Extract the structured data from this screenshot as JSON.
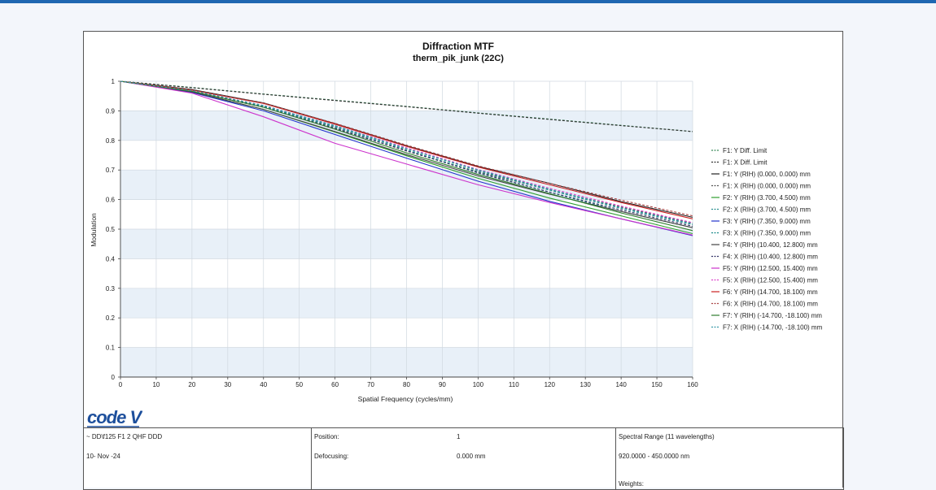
{
  "chart_data": {
    "type": "line",
    "title": "Diffraction MTF",
    "subtitle": "therm_pik_junk (22C)",
    "xlabel": "Spatial Frequency (cycles/mm)",
    "ylabel": "Modulation",
    "xlim": [
      0,
      160
    ],
    "ylim": [
      0,
      1
    ],
    "xticks": [
      "0",
      "10",
      "20",
      "30",
      "40",
      "50",
      "60",
      "70",
      "80",
      "90",
      "100",
      "110",
      "120",
      "130",
      "140",
      "150",
      "160"
    ],
    "yticks": [
      "0",
      "0.1",
      "0.2",
      "0.3",
      "0.4",
      "0.5",
      "0.6",
      "0.7",
      "0.8",
      "0.9",
      "1"
    ],
    "grid": true,
    "legend_position": "right",
    "x": [
      0,
      20,
      40,
      60,
      80,
      100,
      120,
      140,
      160
    ],
    "series": [
      {
        "name": "F1: Y Diff. Limit",
        "color": "#3a8a5a",
        "dash": "dashed",
        "values": [
          1,
          0.979,
          0.957,
          0.936,
          0.915,
          0.893,
          0.872,
          0.851,
          0.83
        ]
      },
      {
        "name": "F1: X Diff. Limit",
        "color": "#333333",
        "dash": "dashed",
        "values": [
          1,
          0.978,
          0.956,
          0.935,
          0.914,
          0.892,
          0.871,
          0.85,
          0.83
        ]
      },
      {
        "name": "F1: Y (RIH) (0.000, 0.000) mm",
        "color": "#222222",
        "dash": "solid",
        "values": [
          1,
          0.972,
          0.927,
          0.857,
          0.782,
          0.712,
          0.655,
          0.593,
          0.54
        ]
      },
      {
        "name": "F1: X (RIH) (0.000, 0.000) mm",
        "color": "#555555",
        "dash": "dashed",
        "values": [
          1,
          0.968,
          0.915,
          0.842,
          0.764,
          0.694,
          0.633,
          0.575,
          0.52
        ]
      },
      {
        "name": "F2: Y (RIH) (3.700, 4.500) mm",
        "color": "#2e9e2e",
        "dash": "solid",
        "values": [
          1,
          0.963,
          0.905,
          0.828,
          0.748,
          0.672,
          0.605,
          0.545,
          0.485
        ]
      },
      {
        "name": "F2: X (RIH) (3.700, 4.500) mm",
        "color": "#2a8f8f",
        "dash": "dashed",
        "values": [
          1,
          0.966,
          0.913,
          0.845,
          0.768,
          0.692,
          0.625,
          0.56,
          0.505
        ]
      },
      {
        "name": "F3: Y (RIH) (7.350, 9.000) mm",
        "color": "#2233cc",
        "dash": "solid",
        "values": [
          1,
          0.962,
          0.9,
          0.82,
          0.74,
          0.662,
          0.594,
          0.535,
          0.478
        ]
      },
      {
        "name": "F3: X (RIH) (7.350, 9.000) mm",
        "color": "#1a8a8a",
        "dash": "dashed",
        "values": [
          1,
          0.967,
          0.915,
          0.848,
          0.772,
          0.698,
          0.632,
          0.57,
          0.515
        ]
      },
      {
        "name": "F4: Y (RIH) (10.400, 12.800) mm",
        "color": "#444444",
        "dash": "solid",
        "values": [
          1,
          0.964,
          0.905,
          0.83,
          0.752,
          0.68,
          0.618,
          0.56,
          0.505
        ]
      },
      {
        "name": "F4: X (RIH) (10.400, 12.800) mm",
        "color": "#333366",
        "dash": "dashed",
        "values": [
          1,
          0.965,
          0.912,
          0.84,
          0.765,
          0.69,
          0.625,
          0.565,
          0.51
        ]
      },
      {
        "name": "F5: Y (RIH) (12.500, 15.400) mm",
        "color": "#cc33cc",
        "dash": "solid",
        "values": [
          1,
          0.96,
          0.88,
          0.79,
          0.72,
          0.65,
          0.59,
          0.535,
          0.48
        ]
      },
      {
        "name": "F5: X (RIH) (12.500, 15.400) mm",
        "color": "#dd44cc",
        "dash": "dashed",
        "values": [
          1,
          0.968,
          0.918,
          0.85,
          0.775,
          0.702,
          0.638,
          0.578,
          0.522
        ]
      },
      {
        "name": "F6: Y (RIH) (14.700, 18.100) mm",
        "color": "#cc2222",
        "dash": "solid",
        "values": [
          1,
          0.97,
          0.925,
          0.855,
          0.78,
          0.71,
          0.65,
          0.59,
          0.535
        ]
      },
      {
        "name": "F6: X (RIH) (14.700, 18.100) mm",
        "color": "#aa4444",
        "dash": "dashed",
        "values": [
          1,
          0.97,
          0.926,
          0.858,
          0.784,
          0.714,
          0.655,
          0.598,
          0.545
        ]
      },
      {
        "name": "F7: Y (RIH) (-14.700, -18.100) mm",
        "color": "#2e7d2e",
        "dash": "solid",
        "values": [
          1,
          0.966,
          0.912,
          0.838,
          0.758,
          0.685,
          0.62,
          0.555,
          0.495
        ]
      },
      {
        "name": "F7: X (RIH) (-14.700, -18.100) mm",
        "color": "#3a9aa8",
        "dash": "dashed",
        "values": [
          1,
          0.968,
          0.918,
          0.85,
          0.772,
          0.7,
          0.635,
          0.572,
          0.518
        ]
      }
    ]
  },
  "logo": {
    "text": "code V"
  },
  "info": {
    "lens_name": "~ DD\\f125  F1 2 QHF DDD",
    "date": "10- Nov -24",
    "position_label": "Position:",
    "position_value": "1",
    "defocusing_label": "Defocusing:",
    "defocusing_value": "0.000 mm",
    "spectral_range": "Spectral Range  (11 wavelengths)",
    "wavelengths": "920.0000  -  450.0000  nm",
    "weights_label": "Weights:"
  },
  "colors": {
    "accent": "#1f67b1",
    "band": "#e8f0f8",
    "logo": "#1d4f9c"
  }
}
